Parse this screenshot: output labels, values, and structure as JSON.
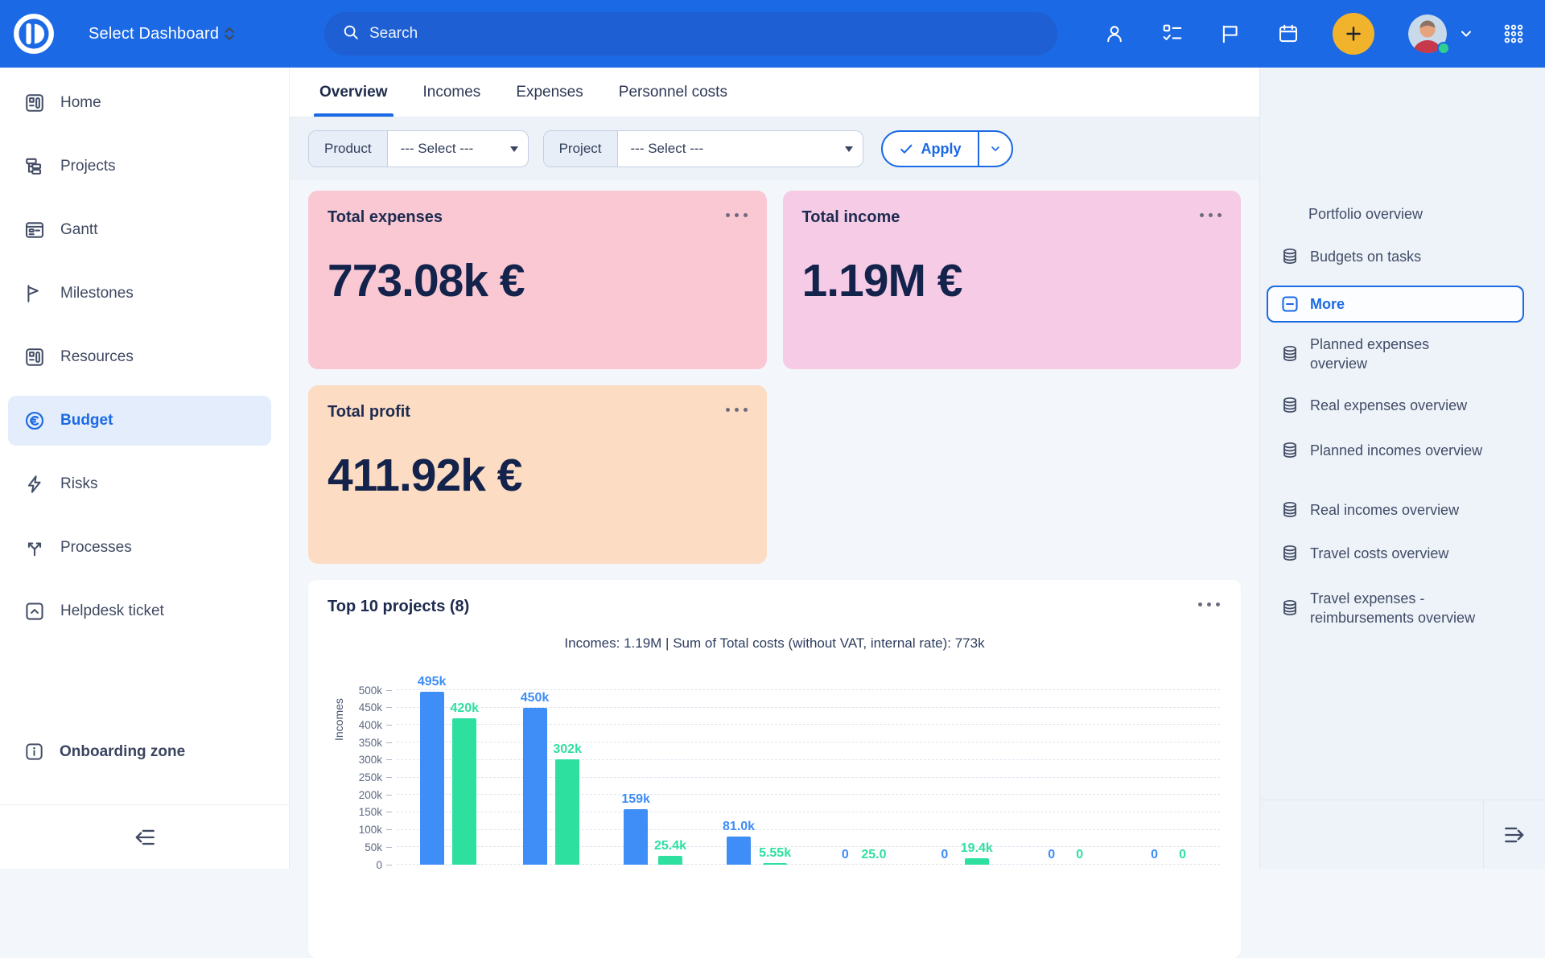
{
  "topbar": {
    "dashboard_selector_label": "Select Dashboard",
    "search_placeholder": "Search",
    "colors": {
      "bar": "#1b69e4",
      "search_pill": "#1e5fd3",
      "add_button": "#f1b32b",
      "status_dot": "#2fcf92"
    }
  },
  "sidebar": {
    "items": [
      {
        "label": "Home",
        "icon": "grid-layout-icon",
        "expandable": true
      },
      {
        "label": "Projects",
        "icon": "hierarchy-icon",
        "expandable": true
      },
      {
        "label": "Gantt",
        "icon": "gantt-chart-icon"
      },
      {
        "label": "Milestones",
        "icon": "milestone-flag-icon"
      },
      {
        "label": "Resources",
        "icon": "grid-layout-icon"
      },
      {
        "label": "Budget",
        "icon": "euro-circle-icon",
        "active": true
      },
      {
        "label": "Risks",
        "icon": "lightning-icon"
      },
      {
        "label": "Processes",
        "icon": "split-arrows-icon"
      },
      {
        "label": "Helpdesk ticket",
        "icon": "chevron-up-square-icon"
      }
    ],
    "onboarding_label": "Onboarding zone",
    "active_color": "#1b69e4"
  },
  "tabs": {
    "items": [
      {
        "label": "Overview",
        "active": true
      },
      {
        "label": "Incomes"
      },
      {
        "label": "Expenses"
      },
      {
        "label": "Personnel costs"
      }
    ]
  },
  "filterbar": {
    "product": {
      "label": "Product",
      "value": "--- Select ---"
    },
    "project": {
      "label": "Project",
      "value": "--- Select ---"
    },
    "apply_label": "Apply"
  },
  "summary_cards": [
    {
      "title": "Total expenses",
      "value": "773.08k €",
      "bg_color": "#f9c8d3"
    },
    {
      "title": "Total income",
      "value": "1.19M €",
      "bg_color": "#f5cbe6"
    },
    {
      "title": "Total profit",
      "value": "411.92k €",
      "bg_color": "#fcdcc3"
    }
  ],
  "chart_card": {
    "title": "Top 10 projects (8)"
  },
  "chart_data": {
    "type": "bar",
    "title": "Incomes: 1.19M | Sum of Total costs (without VAT, internal rate): 773k",
    "ylabel": "Incomes",
    "ylim": [
      0,
      500000
    ],
    "ytick_step": 50000,
    "ytick_labels": [
      "0",
      "50k",
      "100k",
      "150k",
      "200k",
      "250k",
      "300k",
      "350k",
      "400k",
      "450k",
      "500k"
    ],
    "grid": "horizontal-dashed",
    "groups": 8,
    "x_axis_labels_visible": false,
    "legend_visible": false,
    "series": [
      {
        "name": "Incomes",
        "color": "#3f8df7",
        "values": [
          495000,
          450000,
          159000,
          81000,
          0,
          0,
          0,
          0
        ],
        "labels": [
          "495k",
          "450k",
          "159k",
          "81.0k",
          "0",
          "0",
          "0",
          "0"
        ]
      },
      {
        "name": "Total costs",
        "color": "#2ee0a0",
        "values": [
          420000,
          302000,
          25400,
          5550,
          25,
          19400,
          0,
          0
        ],
        "labels": [
          "420k",
          "302k",
          "25.4k",
          "5.55k",
          "25.0",
          "19.4k",
          "0",
          "0"
        ]
      }
    ]
  },
  "right_panel": {
    "items": [
      {
        "label": "Portfolio overview",
        "icon": null
      },
      {
        "label": "Budgets on tasks",
        "icon": "database-icon"
      },
      {
        "label": "More",
        "icon": "minus-square-icon",
        "active": true
      },
      {
        "label": "Planned expenses overview",
        "icon": "database-icon"
      },
      {
        "label": "Real expenses overview",
        "icon": "database-icon"
      },
      {
        "label": "Planned incomes overview",
        "icon": "database-icon"
      },
      {
        "label": "Real incomes overview",
        "icon": "database-icon"
      },
      {
        "label": "Travel costs overview",
        "icon": "database-icon"
      },
      {
        "label": "Travel expenses - reimbursements overview",
        "icon": "database-icon"
      }
    ],
    "active_color": "#1b69e4"
  }
}
